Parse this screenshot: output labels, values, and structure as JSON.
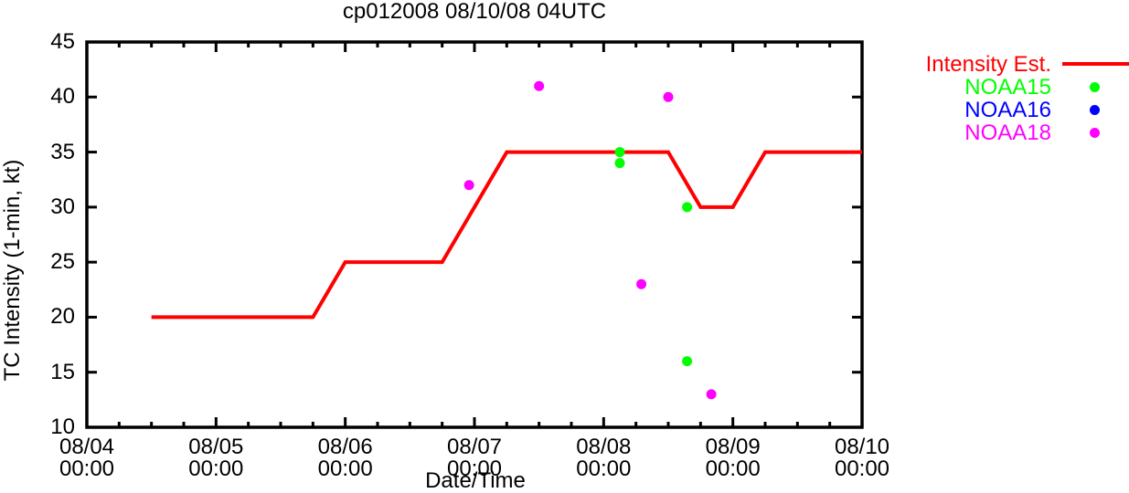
{
  "title": "cp012008 08/10/08 04UTC",
  "colors": {
    "background": "#ffffff",
    "axis": "#000000",
    "intensity_est": "#ff0000",
    "noaa15": "#00ff00",
    "noaa16": "#0000ff",
    "noaa18": "#ff00ff"
  },
  "chart_data": {
    "type": "line",
    "title": "cp012008 08/10/08 04UTC",
    "xlabel": "Date/Time",
    "ylabel": "TC Intensity (1-min, kt)",
    "grid": false,
    "legend_position": "outside-top-right",
    "x_axis": {
      "start": "08/04 00:00",
      "end": "08/10 00:00",
      "range_hours": [
        0,
        144
      ],
      "major_tick_every_hours": 24,
      "minor_tick_every_hours": 6,
      "tick_labels": [
        {
          "date": "08/04",
          "time": "00:00",
          "hours": 0
        },
        {
          "date": "08/05",
          "time": "00:00",
          "hours": 24
        },
        {
          "date": "08/06",
          "time": "00:00",
          "hours": 48
        },
        {
          "date": "08/07",
          "time": "00:00",
          "hours": 72
        },
        {
          "date": "08/08",
          "time": "00:00",
          "hours": 96
        },
        {
          "date": "08/09",
          "time": "00:00",
          "hours": 120
        },
        {
          "date": "08/10",
          "time": "00:00",
          "hours": 144
        }
      ]
    },
    "y_axis": {
      "range": [
        10,
        45
      ],
      "tick_values": [
        10,
        15,
        20,
        25,
        30,
        35,
        40,
        45
      ],
      "tick_labels": [
        "10",
        "15",
        "20",
        "25",
        "30",
        "35",
        "40",
        "45"
      ]
    },
    "series": [
      {
        "name": "Intensity Est.",
        "type": "line",
        "color": "#ff0000",
        "points": [
          {
            "time": "08/04 12:00",
            "hours": 12,
            "kt": 20
          },
          {
            "time": "08/05 18:00",
            "hours": 42,
            "kt": 20
          },
          {
            "time": "08/06 00:00",
            "hours": 48,
            "kt": 25
          },
          {
            "time": "08/06 18:00",
            "hours": 66,
            "kt": 25
          },
          {
            "time": "08/07 06:00",
            "hours": 78,
            "kt": 35
          },
          {
            "time": "08/08 12:00",
            "hours": 108,
            "kt": 35
          },
          {
            "time": "08/08 18:00",
            "hours": 114,
            "kt": 30
          },
          {
            "time": "08/09 00:00",
            "hours": 120,
            "kt": 30
          },
          {
            "time": "08/09 06:00",
            "hours": 126,
            "kt": 35
          },
          {
            "time": "08/10 00:00",
            "hours": 144,
            "kt": 35
          }
        ]
      },
      {
        "name": "NOAA15",
        "type": "scatter",
        "color": "#00ff00",
        "points": [
          {
            "time": "08/08 03:00",
            "hours": 99,
            "kt": 35
          },
          {
            "time": "08/08 03:00",
            "hours": 99,
            "kt": 34
          },
          {
            "time": "08/08 15:30",
            "hours": 111.5,
            "kt": 30
          },
          {
            "time": "08/08 15:30",
            "hours": 111.5,
            "kt": 16
          }
        ]
      },
      {
        "name": "NOAA16",
        "type": "scatter",
        "color": "#0000ff",
        "points": []
      },
      {
        "name": "NOAA18",
        "type": "scatter",
        "color": "#ff00ff",
        "points": [
          {
            "time": "08/06 23:00",
            "hours": 71,
            "kt": 32
          },
          {
            "time": "08/07 12:00",
            "hours": 84,
            "kt": 41
          },
          {
            "time": "08/08 07:00",
            "hours": 103,
            "kt": 23
          },
          {
            "time": "08/08 12:00",
            "hours": 108,
            "kt": 40
          },
          {
            "time": "08/08 20:00",
            "hours": 116,
            "kt": 13
          }
        ]
      }
    ]
  }
}
